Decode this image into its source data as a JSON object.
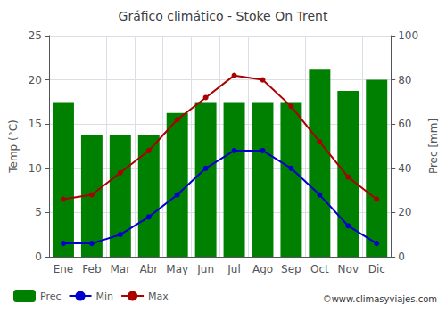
{
  "chart_data": {
    "type": "bar",
    "title": "Gráfico climático - Stoke On Trent",
    "categories": [
      "Ene",
      "Feb",
      "Mar",
      "Abr",
      "May",
      "Jun",
      "Jul",
      "Ago",
      "Sep",
      "Oct",
      "Nov",
      "Dic"
    ],
    "series": [
      {
        "name": "Prec",
        "type": "bar",
        "axis": "y2",
        "color": "#008000",
        "values": [
          70,
          55,
          55,
          55,
          65,
          70,
          70,
          70,
          70,
          85,
          75,
          80
        ]
      },
      {
        "name": "Min",
        "type": "line",
        "color": "#0000cc",
        "marker": "circle",
        "values": [
          1.5,
          1.5,
          2.5,
          4.5,
          7.0,
          10.0,
          12.0,
          12.0,
          10.0,
          7.0,
          3.5,
          1.5
        ]
      },
      {
        "name": "Max",
        "type": "line",
        "color": "#aa0000",
        "marker": "circle",
        "values": [
          6.5,
          7.0,
          9.5,
          12.0,
          15.5,
          18.0,
          20.5,
          20.0,
          17.0,
          13.0,
          9.0,
          6.5
        ]
      }
    ],
    "ylabel": "Temp (°C)",
    "y2label": "Prec [mm]",
    "ylim": [
      0,
      25
    ],
    "yticks": [
      0,
      5,
      10,
      15,
      20,
      25
    ],
    "y2lim": [
      0,
      100
    ],
    "y2ticks": [
      0,
      20,
      40,
      60,
      80,
      100
    ],
    "grid": true,
    "legend": "bottom",
    "annotations": [
      "©www.climasyviajes.com"
    ]
  }
}
